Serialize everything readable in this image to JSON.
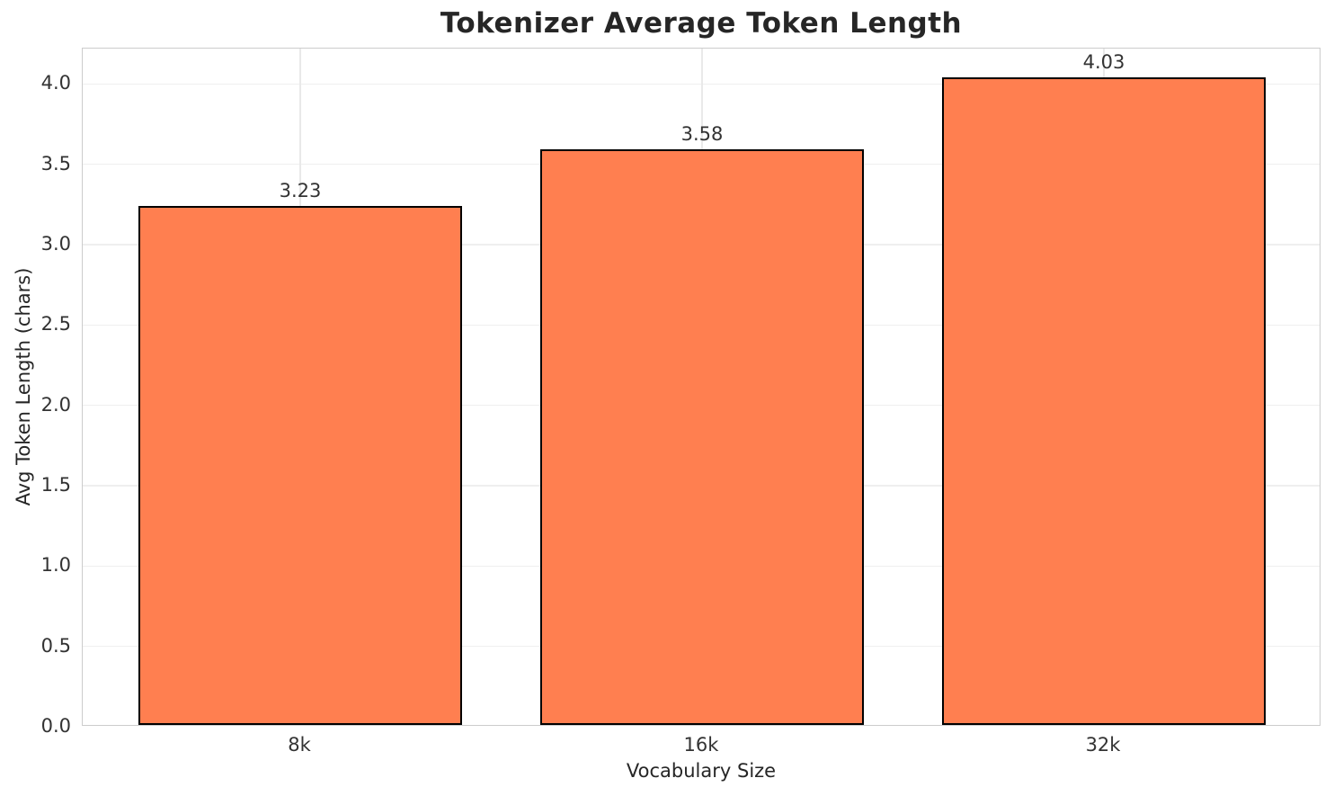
{
  "chart_data": {
    "type": "bar",
    "title": "Tokenizer Average Token Length",
    "xlabel": "Vocabulary Size",
    "ylabel": "Avg Token Length (chars)",
    "categories": [
      "8k",
      "16k",
      "32k"
    ],
    "values": [
      3.23,
      3.58,
      4.03
    ],
    "bar_labels": [
      "3.23",
      "3.58",
      "4.03"
    ],
    "yticks": [
      0.0,
      0.5,
      1.0,
      1.5,
      2.0,
      2.5,
      3.0,
      3.5,
      4.0
    ],
    "ytick_labels": [
      "0.0",
      "0.5",
      "1.0",
      "1.5",
      "2.0",
      "2.5",
      "3.0",
      "3.5",
      "4.0"
    ],
    "ylim": [
      0,
      4.22
    ],
    "grid": "on",
    "legend": "none",
    "colors": {
      "bar_fill": "#ff7f50",
      "bar_edge": "#000000",
      "grid_line": "#efefef",
      "spine": "#cccccc",
      "title_text": "#262626",
      "tick_text": "#333333"
    }
  }
}
